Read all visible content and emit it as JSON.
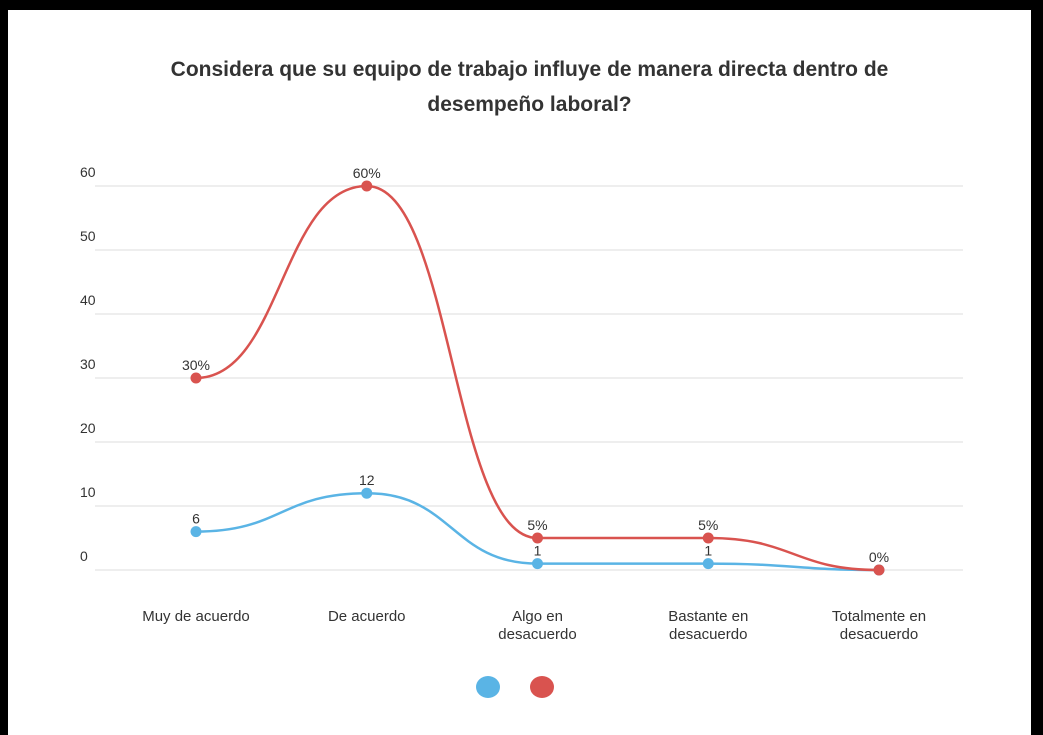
{
  "chart_data": {
    "type": "line",
    "title": "Considera que su equipo de trabajo influye de manera directa dentro de\ndesempeño laboral?",
    "categories": [
      "Muy de acuerdo",
      "De acuerdo",
      "Algo en\ndesacuerdo",
      "Bastante en\ndesacuerdo",
      "Totalmente en\ndesacuerdo"
    ],
    "series": [
      {
        "color": "#5ab4e5",
        "values": [
          6,
          12,
          1,
          1,
          0
        ],
        "value_labels": [
          "6",
          "12",
          "1",
          "1",
          null
        ]
      },
      {
        "color": "#d9534f",
        "values": [
          30,
          60,
          5,
          5,
          0
        ],
        "value_labels": [
          "30%",
          "60%",
          "5%",
          "5%",
          "0%"
        ]
      }
    ],
    "ylim": [
      0,
      60
    ],
    "yticks": [
      0,
      10,
      20,
      30,
      40,
      50,
      60
    ],
    "grid": true
  }
}
